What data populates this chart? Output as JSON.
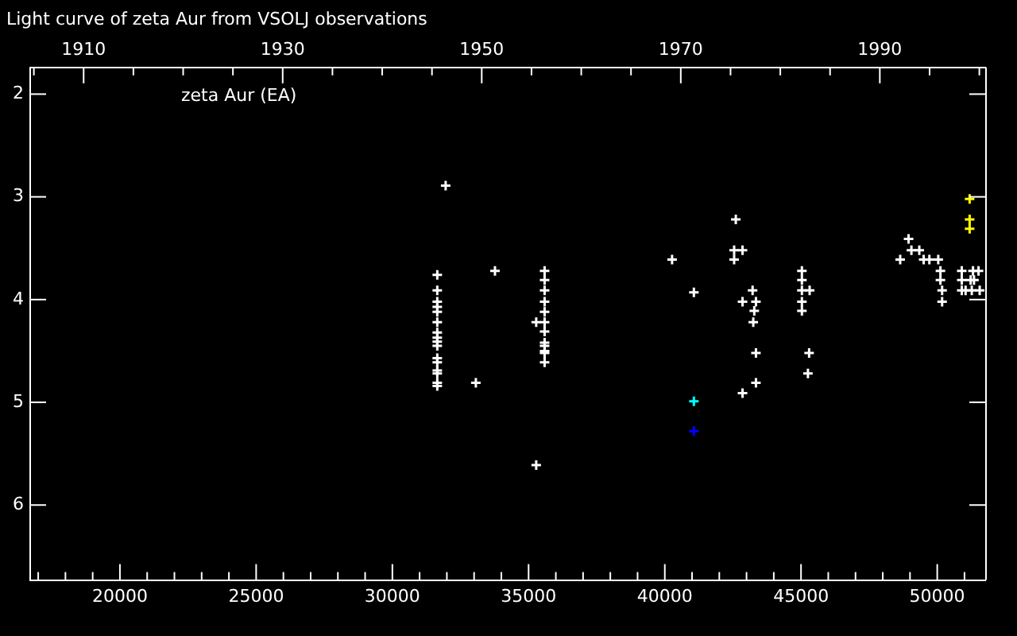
{
  "chart_data": {
    "type": "scatter",
    "title": "Light curve of zeta Aur from VSOLJ observations",
    "annotations": [
      "zeta Aur (EA)"
    ],
    "series": [
      {
        "color": "#ffffff",
        "x": [
          31956,
          31648,
          31648,
          31648,
          31648,
          31648,
          31648,
          31648,
          31648,
          31648,
          31648,
          31648,
          31648,
          31648,
          31648,
          31648,
          31648,
          33766,
          33064,
          35588,
          35588,
          35588,
          35588,
          35588,
          35588,
          35588,
          35588,
          35588,
          35588,
          35588,
          35588,
          35280,
          35280,
          40267,
          41067,
          42606,
          42545,
          42853,
          42545,
          43222,
          42853,
          43345,
          43284,
          43247,
          43345,
          43345,
          42853,
          45032,
          45032,
          45032,
          45316,
          45032,
          45032,
          45297,
          45254,
          48948,
          49052,
          49341,
          48640,
          49502,
          49711,
          50037,
          50117,
          50900,
          51312,
          51515,
          50117,
          50900,
          51226,
          51349,
          50179,
          50900,
          51041,
          51268,
          51558,
          50179
        ],
        "values": [
          2.89,
          3.76,
          3.91,
          4.02,
          4.07,
          4.12,
          4.22,
          4.32,
          4.37,
          4.41,
          4.45,
          4.57,
          4.61,
          4.69,
          4.72,
          4.81,
          4.84,
          3.72,
          4.81,
          3.72,
          3.81,
          3.91,
          4.02,
          4.12,
          4.22,
          4.31,
          4.42,
          4.45,
          4.5,
          4.52,
          4.61,
          4.22,
          5.61,
          3.61,
          3.93,
          3.22,
          3.52,
          3.52,
          3.61,
          3.91,
          4.02,
          4.02,
          4.11,
          4.22,
          4.52,
          4.81,
          4.91,
          3.72,
          3.81,
          3.91,
          3.91,
          4.02,
          4.11,
          4.52,
          4.72,
          3.41,
          3.52,
          3.52,
          3.61,
          3.61,
          3.61,
          3.61,
          3.72,
          3.72,
          3.72,
          3.72,
          3.81,
          3.81,
          3.81,
          3.81,
          3.91,
          3.91,
          3.91,
          3.91,
          3.91,
          4.02
        ]
      },
      {
        "color": "#ffff00",
        "x": [
          51189,
          51189,
          51189
        ],
        "values": [
          3.02,
          3.22,
          3.31
        ]
      },
      {
        "color": "#00ffff",
        "x": [
          41067
        ],
        "values": [
          4.99
        ]
      },
      {
        "color": "#0000ff",
        "x": [
          41067
        ],
        "values": [
          5.28
        ]
      }
    ],
    "xlim": [
      16706,
      51761
    ],
    "xticks": [
      {
        "value": 17000,
        "label": null
      },
      {
        "value": 18000,
        "label": null
      },
      {
        "value": 19000,
        "label": null
      },
      20000,
      {
        "value": 21000,
        "label": null
      },
      {
        "value": 22000,
        "label": null
      },
      {
        "value": 23000,
        "label": null
      },
      {
        "value": 24000,
        "label": null
      },
      25000,
      {
        "value": 26000,
        "label": null
      },
      {
        "value": 27000,
        "label": null
      },
      {
        "value": 28000,
        "label": null
      },
      {
        "value": 29000,
        "label": null
      },
      30000,
      {
        "value": 31000,
        "label": null
      },
      {
        "value": 32000,
        "label": null
      },
      {
        "value": 33000,
        "label": null
      },
      {
        "value": 34000,
        "label": null
      },
      35000,
      {
        "value": 36000,
        "label": null
      },
      {
        "value": 37000,
        "label": null
      },
      {
        "value": 38000,
        "label": null
      },
      {
        "value": 39000,
        "label": null
      },
      40000,
      {
        "value": 41000,
        "label": null
      },
      {
        "value": 42000,
        "label": null
      },
      {
        "value": 43000,
        "label": null
      },
      {
        "value": 44000,
        "label": null
      },
      45000,
      {
        "value": 46000,
        "label": null
      },
      {
        "value": 47000,
        "label": null
      },
      {
        "value": 48000,
        "label": null
      },
      {
        "value": 49000,
        "label": null
      },
      50000,
      {
        "value": 51000,
        "label": null
      }
    ],
    "x2lim": [
      1904.63,
      2000.59
    ],
    "x2ticks": [
      {
        "value": 1905,
        "label": null
      },
      1910,
      {
        "value": 1915,
        "label": null
      },
      {
        "value": 1920,
        "label": null
      },
      {
        "value": 1925,
        "label": null
      },
      1930,
      {
        "value": 1935,
        "label": null
      },
      {
        "value": 1940,
        "label": null
      },
      {
        "value": 1945,
        "label": null
      },
      1950,
      {
        "value": 1955,
        "label": null
      },
      {
        "value": 1960,
        "label": null
      },
      {
        "value": 1965,
        "label": null
      },
      1970,
      {
        "value": 1975,
        "label": null
      },
      {
        "value": 1980,
        "label": null
      },
      {
        "value": 1985,
        "label": null
      },
      1990,
      {
        "value": 1995,
        "label": null
      },
      {
        "value": 2000,
        "label": null
      }
    ],
    "ylim": [
      6.73,
      1.74
    ],
    "yticks": [
      2,
      3,
      4,
      5,
      6
    ],
    "grid": false,
    "legend": false,
    "marker": "cross"
  }
}
